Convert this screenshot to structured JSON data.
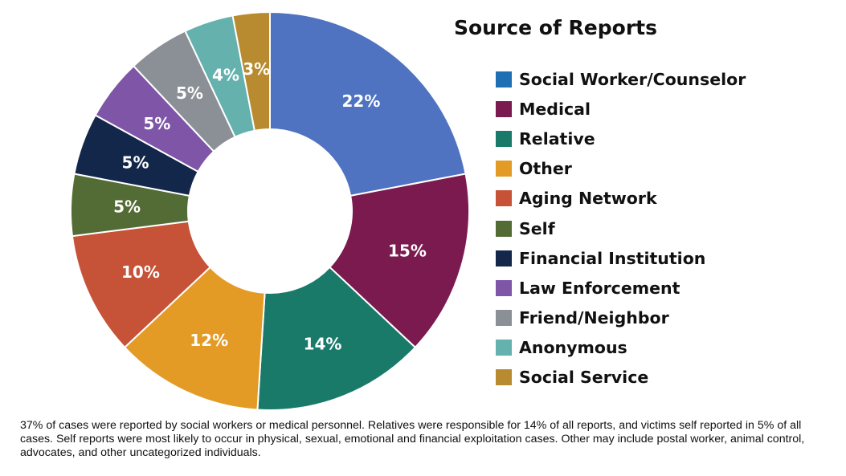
{
  "chart_data": {
    "type": "pie",
    "variant": "donut",
    "title": "Source of Reports",
    "legend_position": "right",
    "slices": [
      {
        "name": "Social Worker/Counselor",
        "value": 22,
        "label": "22%",
        "color": "#4F73C1"
      },
      {
        "name": "Medical",
        "value": 15,
        "label": "15%",
        "color": "#7B1A4E"
      },
      {
        "name": "Relative",
        "value": 14,
        "label": "14%",
        "color": "#1A7A6A"
      },
      {
        "name": "Other",
        "value": 12,
        "label": "12%",
        "color": "#E39B26"
      },
      {
        "name": "Aging Network",
        "value": 10,
        "label": "10%",
        "color": "#C65238"
      },
      {
        "name": "Self",
        "value": 5,
        "label": "5%",
        "color": "#536B34"
      },
      {
        "name": "Financial Institution",
        "value": 5,
        "label": "5%",
        "color": "#13274A"
      },
      {
        "name": "Law Enforcement",
        "value": 5,
        "label": "5%",
        "color": "#7F56A7"
      },
      {
        "name": "Friend/Neighbor",
        "value": 5,
        "label": "5%",
        "color": "#8A9096"
      },
      {
        "name": "Anonymous",
        "value": 4,
        "label": "4%",
        "color": "#64B1AD"
      },
      {
        "name": "Social Service",
        "value": 3,
        "label": "3%",
        "color": "#B88B31"
      }
    ],
    "legend_colors": [
      "#1F6FB4",
      "#7B1A4E",
      "#1A7A6A",
      "#E39B26",
      "#C65238",
      "#536B34",
      "#13274A",
      "#7F56A7",
      "#8A9096",
      "#64B1AD",
      "#B88B31"
    ]
  },
  "caption": "37% of cases were reported by social workers or medical personnel. Relatives were responsible for 14% of all reports, and victims self reported in 5% of all cases. Self reports were most likely to occur in physical, sexual, emotional and financial exploitation cases. Other may include postal worker, animal control, advocates, and other uncategorized individuals."
}
